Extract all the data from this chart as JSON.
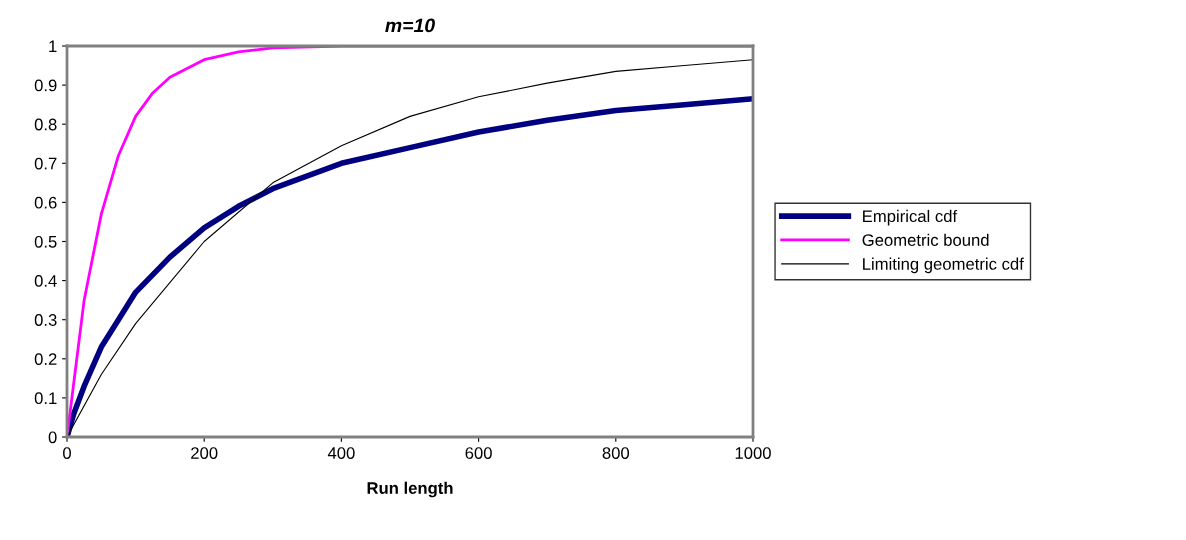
{
  "chart_data": {
    "type": "line",
    "title": "m=10",
    "xlabel": "Run length",
    "xlim": [
      0,
      1000
    ],
    "xticks": [
      0,
      200,
      400,
      600,
      800,
      1000
    ],
    "ylim": [
      0,
      1
    ],
    "yticks": [
      0,
      0.1,
      0.2,
      0.3,
      0.4,
      0.5,
      0.6,
      0.7,
      0.8,
      0.9,
      1
    ],
    "grid": false,
    "legend": "right",
    "marker": "none",
    "line_style": "solid",
    "series": [
      {
        "name": "Empirical cdf",
        "color": "#000080",
        "x": [
          0,
          10,
          25,
          50,
          75,
          100,
          150,
          200,
          250,
          300,
          400,
          500,
          600,
          700,
          800,
          900,
          1000
        ],
        "values": [
          0,
          0.06,
          0.13,
          0.23,
          0.3,
          0.37,
          0.46,
          0.535,
          0.59,
          0.635,
          0.7,
          0.74,
          0.78,
          0.81,
          0.835,
          0.85,
          0.865
        ]
      },
      {
        "name": "Geometric bound",
        "color": "#ff00ff",
        "x": [
          0,
          25,
          50,
          75,
          100,
          125,
          150,
          200,
          250,
          300,
          400,
          1000
        ],
        "values": [
          0,
          0.35,
          0.57,
          0.72,
          0.82,
          0.88,
          0.92,
          0.965,
          0.985,
          0.995,
          1.0,
          1.0
        ]
      },
      {
        "name": "Limiting geometric cdf",
        "color": "#000000",
        "x": [
          0,
          50,
          100,
          200,
          300,
          400,
          500,
          600,
          700,
          800,
          900,
          1000
        ],
        "values": [
          0,
          0.16,
          0.29,
          0.5,
          0.65,
          0.745,
          0.82,
          0.87,
          0.905,
          0.935,
          0.95,
          0.965
        ]
      }
    ]
  }
}
